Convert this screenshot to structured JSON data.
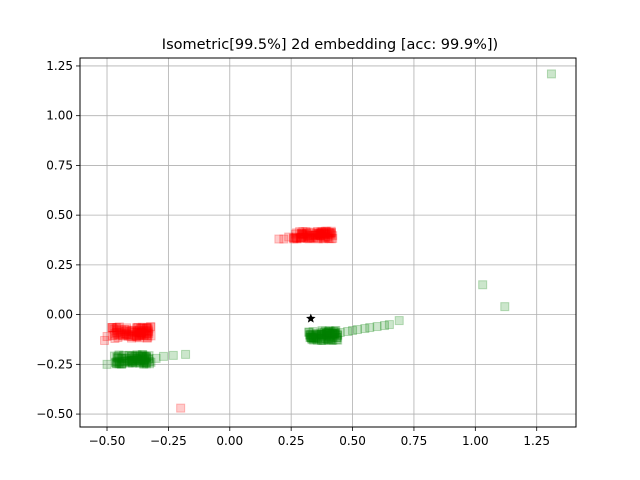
{
  "chart_data": {
    "type": "scatter",
    "title": "Isometric[99.5%] 2d embedding [acc: 99.9%])",
    "xlabel": "",
    "ylabel": "",
    "xlim": [
      -0.61,
      1.41
    ],
    "ylim": [
      -0.565,
      1.29
    ],
    "xticks": [
      -0.5,
      -0.25,
      0.0,
      0.25,
      0.5,
      0.75,
      1.0,
      1.25
    ],
    "xtick_labels": [
      "−0.50",
      "−0.25",
      "0.00",
      "0.25",
      "0.50",
      "0.75",
      "1.00",
      "1.25"
    ],
    "yticks": [
      -0.5,
      -0.25,
      0.0,
      0.25,
      0.5,
      0.75,
      1.0,
      1.25
    ],
    "ytick_labels": [
      "−0.50",
      "−0.25",
      "0.00",
      "0.25",
      "0.50",
      "0.75",
      "1.00",
      "1.25"
    ],
    "grid": true,
    "series": [
      {
        "color": "#ff0000",
        "marker": "square",
        "clusters": [
          {
            "x_range": [
              -0.48,
              -0.32
            ],
            "y_range": [
              -0.12,
              -0.06
            ],
            "count": 90
          },
          {
            "x_range": [
              0.26,
              0.42
            ],
            "y_range": [
              0.38,
              0.42
            ],
            "count": 90
          }
        ],
        "points": [
          [
            -0.51,
            -0.13
          ],
          [
            -0.5,
            -0.11
          ],
          [
            -0.36,
            -0.07
          ],
          [
            -0.35,
            -0.08
          ],
          [
            -0.37,
            -0.1
          ],
          [
            0.2,
            0.38
          ],
          [
            0.22,
            0.38
          ],
          [
            0.24,
            0.39
          ],
          [
            0.26,
            0.385
          ],
          [
            -0.2,
            -0.47
          ]
        ]
      },
      {
        "color": "#008000",
        "marker": "square",
        "clusters": [
          {
            "x_range": [
              -0.47,
              -0.32
            ],
            "y_range": [
              -0.25,
              -0.2
            ],
            "count": 90
          },
          {
            "x_range": [
              0.32,
              0.44
            ],
            "y_range": [
              -0.13,
              -0.08
            ],
            "count": 90
          }
        ],
        "points": [
          [
            -0.5,
            -0.25
          ],
          [
            -0.3,
            -0.22
          ],
          [
            -0.27,
            -0.21
          ],
          [
            -0.23,
            -0.205
          ],
          [
            -0.18,
            -0.2
          ],
          [
            0.45,
            -0.09
          ],
          [
            0.48,
            -0.085
          ],
          [
            0.5,
            -0.08
          ],
          [
            0.52,
            -0.075
          ],
          [
            0.55,
            -0.07
          ],
          [
            0.57,
            -0.065
          ],
          [
            0.6,
            -0.06
          ],
          [
            0.63,
            -0.055
          ],
          [
            0.65,
            -0.05
          ],
          [
            0.69,
            -0.03
          ],
          [
            1.03,
            0.15
          ],
          [
            1.12,
            0.04
          ],
          [
            1.31,
            1.21
          ]
        ]
      }
    ],
    "marker_point": {
      "x": 0.33,
      "y": -0.02,
      "marker": "star",
      "color": "#000000"
    }
  }
}
